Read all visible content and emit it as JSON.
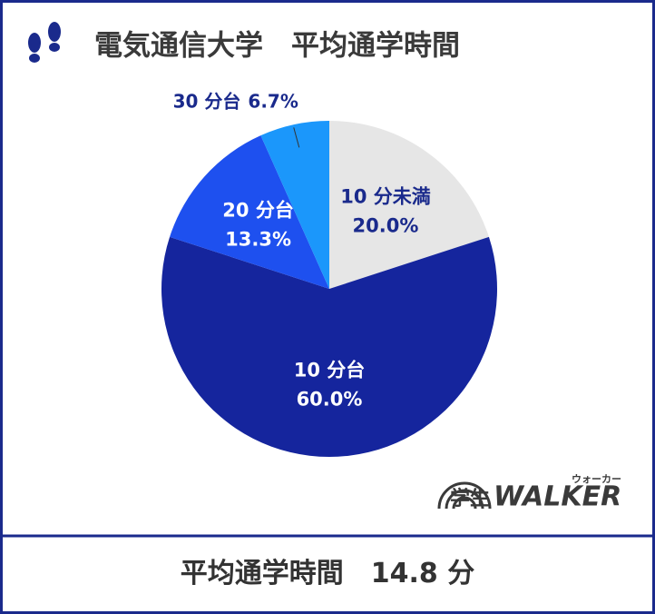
{
  "chart_data": {
    "type": "pie",
    "title": "電気通信大学　平均通学時間",
    "categories": [
      "10 分未満",
      "10 分台",
      "20 分台",
      "30 分台"
    ],
    "values": [
      20.0,
      60.0,
      13.3,
      6.7
    ],
    "value_labels": [
      "20.0%",
      "60.0%",
      "13.3%",
      "6.7%"
    ],
    "colors": [
      "#e6e6e6",
      "#15259d",
      "#1e50ef",
      "#1b97fb"
    ]
  },
  "logo": {
    "text": "学生",
    "brand": "WALKER",
    "reading": "ウォーカー"
  },
  "footer": {
    "label": "平均通学時間",
    "value": "14.8 分"
  }
}
